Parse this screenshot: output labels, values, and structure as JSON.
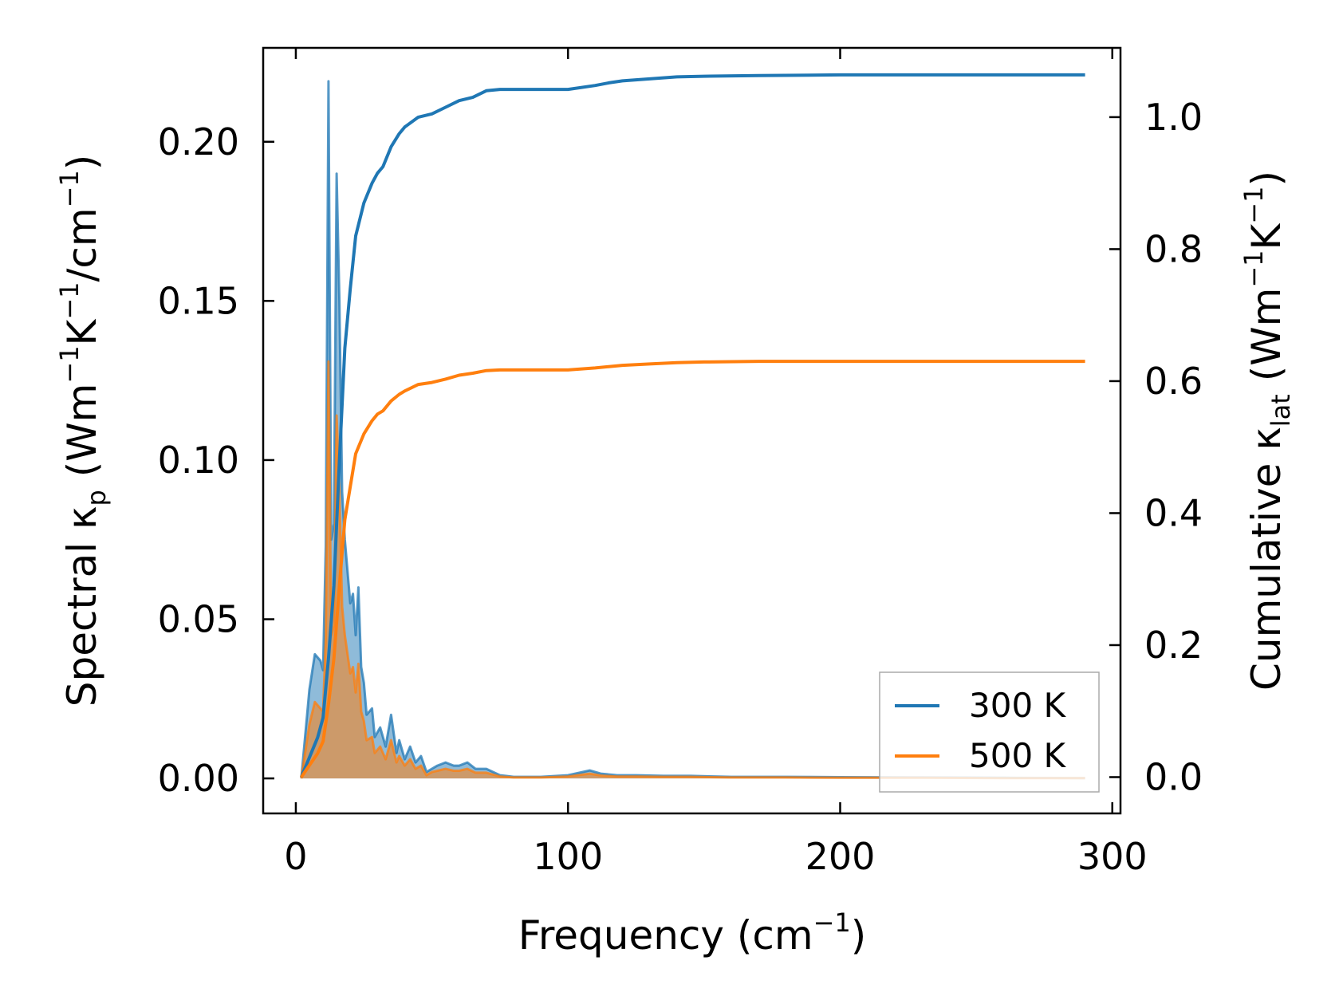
{
  "chart_data": {
    "type": "line",
    "xlabel": {
      "main": "Frequency (cm",
      "sup": "−1",
      "tail": ")"
    },
    "ylabel_left": {
      "pre": "Spectral κ",
      "sub": "p",
      "mid1": " (Wm",
      "sup1": "−1",
      "mid2": "K",
      "sup2": "−1",
      "mid3": "/cm",
      "sup3": "−1",
      "tail": ")"
    },
    "ylabel_right": {
      "pre": "Cumulative κ",
      "sub": "lat",
      "mid1": " (Wm",
      "sup1": "−1",
      "mid2": "K",
      "sup2": "−1",
      "tail": ")"
    },
    "xlim": [
      -12,
      303
    ],
    "ylim_left": [
      -0.011,
      0.2295
    ],
    "ylim_right": [
      -0.055,
      1.105
    ],
    "xticks": [
      0,
      100,
      200,
      300
    ],
    "xtick_labels": [
      "0",
      "100",
      "200",
      "300"
    ],
    "yticks_left": [
      0.0,
      0.05,
      0.1,
      0.15,
      0.2
    ],
    "ytick_labels_left": [
      "0.00",
      "0.05",
      "0.10",
      "0.15",
      "0.20"
    ],
    "yticks_right": [
      0.0,
      0.2,
      0.4,
      0.6,
      0.8,
      1.0
    ],
    "ytick_labels_right": [
      "0.0",
      "0.2",
      "0.4",
      "0.6",
      "0.8",
      "1.0"
    ],
    "grid": false,
    "legend_position": "lower-right",
    "series": [
      {
        "name": "300 K",
        "color": "#1f77b4",
        "spectral": {
          "x": [
            2,
            5,
            7,
            9,
            10,
            11,
            12,
            13,
            14,
            15,
            16,
            17,
            18,
            19,
            20,
            21,
            22,
            23,
            24,
            25,
            26,
            28,
            29,
            31,
            33,
            35,
            37,
            38,
            40,
            42,
            44,
            46,
            48,
            50,
            52,
            55,
            58,
            60,
            63,
            66,
            70,
            75,
            80,
            90,
            100,
            108,
            112,
            118,
            125,
            135,
            145,
            160,
            180,
            200,
            230,
            260,
            290
          ],
          "y": [
            0.0,
            0.028,
            0.039,
            0.037,
            0.034,
            0.073,
            0.219,
            0.075,
            0.08,
            0.19,
            0.15,
            0.09,
            0.075,
            0.065,
            0.055,
            0.058,
            0.045,
            0.06,
            0.035,
            0.03,
            0.02,
            0.022,
            0.013,
            0.016,
            0.01,
            0.02,
            0.008,
            0.012,
            0.006,
            0.01,
            0.005,
            0.007,
            0.002,
            0.003,
            0.004,
            0.005,
            0.004,
            0.004,
            0.005,
            0.003,
            0.003,
            0.001,
            0.0005,
            0.0005,
            0.001,
            0.0025,
            0.0015,
            0.001,
            0.001,
            0.0008,
            0.0008,
            0.0005,
            0.0005,
            0.0004,
            0.0003,
            0.0002,
            0.0001
          ]
        },
        "cumulative": {
          "x": [
            2,
            5,
            8,
            10,
            12,
            14,
            16,
            18,
            20,
            22,
            25,
            28,
            30,
            32,
            35,
            38,
            40,
            45,
            50,
            55,
            60,
            65,
            70,
            75,
            80,
            90,
            100,
            110,
            115,
            120,
            130,
            140,
            150,
            170,
            200,
            250,
            290
          ],
          "y": [
            0.0,
            0.03,
            0.06,
            0.09,
            0.18,
            0.29,
            0.48,
            0.65,
            0.74,
            0.82,
            0.87,
            0.9,
            0.915,
            0.925,
            0.955,
            0.975,
            0.985,
            1.0,
            1.005,
            1.015,
            1.025,
            1.03,
            1.04,
            1.042,
            1.042,
            1.042,
            1.042,
            1.048,
            1.052,
            1.055,
            1.058,
            1.061,
            1.062,
            1.063,
            1.064,
            1.064,
            1.064
          ]
        }
      },
      {
        "name": "500 K",
        "color": "#ff7f0e",
        "spectral": {
          "x": [
            2,
            5,
            7,
            9,
            10,
            11,
            12,
            13,
            14,
            15,
            16,
            17,
            18,
            19,
            20,
            21,
            22,
            23,
            24,
            25,
            26,
            28,
            29,
            31,
            33,
            35,
            37,
            38,
            40,
            42,
            44,
            46,
            48,
            50,
            52,
            55,
            58,
            60,
            63,
            66,
            70,
            75,
            80,
            90,
            100,
            108,
            112,
            118,
            125,
            135,
            145,
            160,
            180,
            200,
            230,
            260,
            290
          ],
          "y": [
            0.0,
            0.017,
            0.024,
            0.022,
            0.021,
            0.044,
            0.131,
            0.045,
            0.048,
            0.114,
            0.09,
            0.054,
            0.045,
            0.039,
            0.033,
            0.035,
            0.027,
            0.036,
            0.021,
            0.018,
            0.012,
            0.013,
            0.008,
            0.01,
            0.006,
            0.012,
            0.005,
            0.007,
            0.004,
            0.006,
            0.003,
            0.004,
            0.001,
            0.002,
            0.0024,
            0.003,
            0.0024,
            0.0024,
            0.003,
            0.0018,
            0.0018,
            0.0006,
            0.0003,
            0.0003,
            0.0006,
            0.0015,
            0.0009,
            0.0006,
            0.0006,
            0.0005,
            0.0005,
            0.0003,
            0.0003,
            0.0002,
            0.0002,
            0.0001,
            0.0001
          ]
        },
        "cumulative": {
          "x": [
            2,
            5,
            8,
            10,
            12,
            14,
            16,
            18,
            20,
            22,
            25,
            28,
            30,
            32,
            35,
            38,
            40,
            45,
            50,
            55,
            60,
            65,
            70,
            75,
            80,
            90,
            100,
            110,
            115,
            120,
            130,
            140,
            150,
            170,
            200,
            250,
            290
          ],
          "y": [
            0.0,
            0.018,
            0.036,
            0.054,
            0.11,
            0.18,
            0.29,
            0.39,
            0.44,
            0.49,
            0.52,
            0.54,
            0.55,
            0.555,
            0.57,
            0.58,
            0.585,
            0.595,
            0.598,
            0.603,
            0.609,
            0.612,
            0.616,
            0.617,
            0.617,
            0.617,
            0.617,
            0.62,
            0.622,
            0.624,
            0.626,
            0.628,
            0.629,
            0.63,
            0.63,
            0.63,
            0.63
          ]
        }
      }
    ]
  }
}
